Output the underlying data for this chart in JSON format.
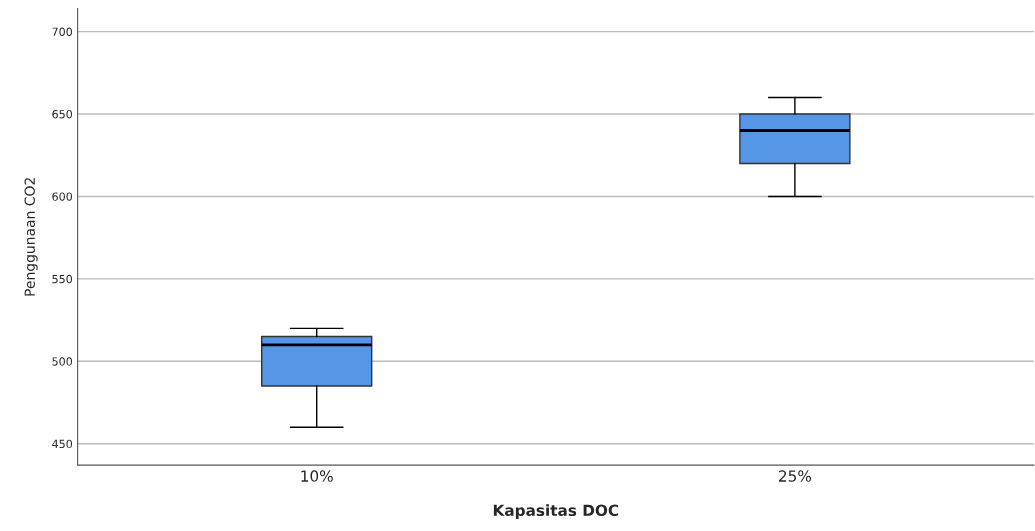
{
  "chart_data": {
    "type": "box",
    "xlabel": "Kapasitas DOC",
    "ylabel": "Penggunaan CO2",
    "categories": [
      "10%",
      "25%"
    ],
    "boxes": [
      {
        "low": 460,
        "q1": 485,
        "median": 510,
        "q3": 515,
        "high": 520
      },
      {
        "low": 600,
        "q1": 620,
        "median": 640,
        "q3": 650,
        "high": 660
      }
    ],
    "color": "#5596e6",
    "ylim": [
      437,
      714
    ],
    "yticks": [
      450,
      500,
      550,
      600,
      650,
      700
    ],
    "grid": "y"
  }
}
